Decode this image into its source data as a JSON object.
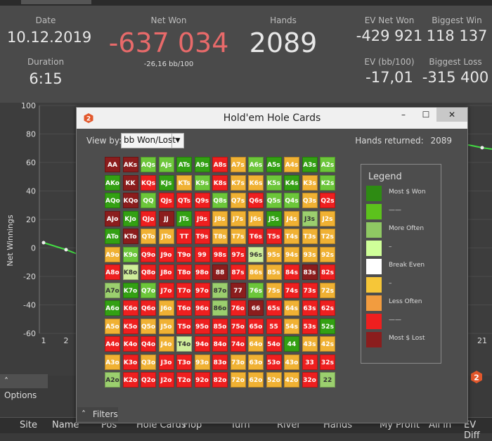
{
  "stats": {
    "date": {
      "label": "Date",
      "value": "10.12.2019"
    },
    "duration": {
      "label": "Duration",
      "value": "6:15"
    },
    "net_won": {
      "label": "Net Won",
      "value": "-637 034",
      "sub": "-26,16 bb/100",
      "color": "#e86a6a"
    },
    "hands": {
      "label": "Hands",
      "value": "2089"
    },
    "ev_net_won": {
      "label": "EV Net Won",
      "value": "-429 921"
    },
    "biggest_win": {
      "label": "Biggest Win",
      "value": "118 137"
    },
    "ev_bb": {
      "label": "EV (bb/100)",
      "value": "-17,01"
    },
    "biggest_loss": {
      "label": "Biggest Loss",
      "value": "-315 400"
    }
  },
  "chart": {
    "ylabel": "Net Winnings",
    "yticks": [
      "100",
      "80",
      "60",
      "40",
      "20",
      "0",
      "-20",
      "-40",
      "-60"
    ],
    "xticks": [
      "1",
      "2",
      "21"
    ],
    "line_color": "#44dd44"
  },
  "options_label": "Options",
  "grid_header": [
    "Site",
    "Name",
    "Pos",
    "Hole Cards",
    "Flop",
    "Turn",
    "River",
    "Hands",
    "My Profit",
    "All in",
    "EV Diff"
  ],
  "dialog": {
    "title": "Hold'em Hole Cards",
    "buttons": {
      "minimize": "–",
      "maximize": "☐",
      "close": "✕"
    },
    "view_by_label": "View by:",
    "view_by_value": "bb Won/Lost",
    "hands_returned_label": "Hands returned:",
    "hands_returned_value": "2089",
    "filters_label": "Filters"
  },
  "grid": {
    "labels": [
      [
        "AA",
        "AKs",
        "AQs",
        "AJs",
        "ATs",
        "A9s",
        "A8s",
        "A7s",
        "A6s",
        "A5s",
        "A4s",
        "A3s",
        "A2s"
      ],
      [
        "AKo",
        "KK",
        "KQs",
        "KJs",
        "KTs",
        "K9s",
        "K8s",
        "K7s",
        "K6s",
        "K5s",
        "K4s",
        "K3s",
        "K2s"
      ],
      [
        "AQo",
        "KQo",
        "QQ",
        "QJs",
        "QTs",
        "Q9s",
        "Q8s",
        "Q7s",
        "Q6s",
        "Q5s",
        "Q4s",
        "Q3s",
        "Q2s"
      ],
      [
        "AJo",
        "KJo",
        "QJo",
        "JJ",
        "JTs",
        "J9s",
        "J8s",
        "J7s",
        "J6s",
        "J5s",
        "J4s",
        "J3s",
        "J2s"
      ],
      [
        "ATo",
        "KTo",
        "QTo",
        "JTo",
        "TT",
        "T9s",
        "T8s",
        "T7s",
        "T6s",
        "T5s",
        "T4s",
        "T3s",
        "T2s"
      ],
      [
        "A9o",
        "K9o",
        "Q9o",
        "J9o",
        "T9o",
        "99",
        "98s",
        "97s",
        "96s",
        "95s",
        "94s",
        "93s",
        "92s"
      ],
      [
        "A8o",
        "K8o",
        "Q8o",
        "J8o",
        "T8o",
        "98o",
        "88",
        "87s",
        "86s",
        "85s",
        "84s",
        "83s",
        "82s"
      ],
      [
        "A7o",
        "K7o",
        "Q7o",
        "J7o",
        "T7o",
        "97o",
        "87o",
        "77",
        "76s",
        "75s",
        "74s",
        "73s",
        "72s"
      ],
      [
        "A6o",
        "K6o",
        "Q6o",
        "J6o",
        "T6o",
        "96o",
        "86o",
        "76o",
        "66",
        "65s",
        "64s",
        "63s",
        "62s"
      ],
      [
        "A5o",
        "K5o",
        "Q5o",
        "J5o",
        "T5o",
        "95o",
        "85o",
        "75o",
        "65o",
        "55",
        "54s",
        "53s",
        "52s"
      ],
      [
        "A4o",
        "K4o",
        "Q4o",
        "J4o",
        "T4o",
        "94o",
        "84o",
        "74o",
        "64o",
        "54o",
        "44",
        "43s",
        "42s"
      ],
      [
        "A3o",
        "K3o",
        "Q3o",
        "J3o",
        "T3o",
        "93o",
        "83o",
        "73o",
        "63o",
        "53o",
        "43o",
        "33",
        "32s"
      ],
      [
        "A2o",
        "K2o",
        "Q2o",
        "J2o",
        "T2o",
        "92o",
        "82o",
        "72o",
        "62o",
        "52o",
        "42o",
        "32o",
        "22"
      ]
    ],
    "levels": [
      [
        0,
        0,
        2,
        2,
        1,
        1,
        7,
        5,
        2,
        1,
        5,
        1,
        2
      ],
      [
        1,
        0,
        7,
        1,
        5,
        2,
        7,
        5,
        5,
        2,
        1,
        5,
        2
      ],
      [
        1,
        0,
        2,
        7,
        7,
        7,
        2,
        5,
        7,
        2,
        2,
        5,
        7
      ],
      [
        0,
        1,
        7,
        0,
        1,
        7,
        5,
        5,
        5,
        1,
        5,
        3,
        5
      ],
      [
        1,
        0,
        5,
        5,
        7,
        7,
        5,
        5,
        7,
        7,
        5,
        5,
        5
      ],
      [
        5,
        2,
        7,
        7,
        7,
        7,
        7,
        7,
        4,
        5,
        5,
        5,
        5
      ],
      [
        7,
        4,
        7,
        7,
        7,
        7,
        0,
        7,
        5,
        5,
        7,
        0,
        7
      ],
      [
        3,
        1,
        2,
        7,
        7,
        7,
        3,
        0,
        2,
        5,
        7,
        7,
        5
      ],
      [
        1,
        7,
        7,
        5,
        7,
        7,
        3,
        7,
        0,
        7,
        5,
        7,
        7
      ],
      [
        5,
        7,
        5,
        5,
        7,
        7,
        7,
        7,
        7,
        7,
        5,
        7,
        1
      ],
      [
        7,
        7,
        7,
        5,
        4,
        7,
        7,
        7,
        5,
        7,
        1,
        5,
        5
      ],
      [
        5,
        7,
        5,
        7,
        7,
        5,
        7,
        5,
        5,
        7,
        5,
        7,
        7
      ],
      [
        3,
        7,
        7,
        7,
        7,
        7,
        7,
        5,
        5,
        5,
        5,
        7,
        3
      ]
    ],
    "palette": [
      "#8b1d1d",
      "#33a013",
      "#6cc63a",
      "#9bcf6e",
      "#cfee9a",
      "#f0b133",
      "#f29c3f",
      "#ee1f1f"
    ]
  },
  "legend": {
    "title": "Legend",
    "items": [
      {
        "label": "Most $ Won",
        "color": "#2e8b13"
      },
      {
        "label": "——",
        "color": "#5cc21c"
      },
      {
        "label": "More Often",
        "color": "#8fc863"
      },
      {
        "label": "–",
        "color": "#cfff99"
      },
      {
        "label": "Break Even",
        "color": "#ffffff"
      },
      {
        "label": "–",
        "color": "#f6c638"
      },
      {
        "label": "Less Often",
        "color": "#f29c3f"
      },
      {
        "label": "——",
        "color": "#ee1f1f"
      },
      {
        "label": "Most $ Lost",
        "color": "#8b1d1d"
      }
    ]
  }
}
